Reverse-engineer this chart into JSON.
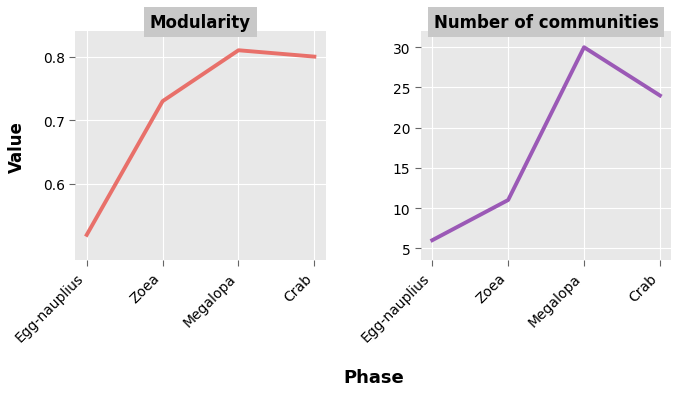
{
  "phases": [
    "Egg-nauplius",
    "Zoea",
    "Megalopa",
    "Crab"
  ],
  "modularity_values": [
    0.52,
    0.73,
    0.81,
    0.8
  ],
  "communities_values": [
    6,
    11,
    30,
    24
  ],
  "left_title": "Modularity",
  "right_title": "Number of communities",
  "xlabel": "Phase",
  "ylabel": "Value",
  "left_ylim": [
    0.48,
    0.84
  ],
  "left_yticks": [
    0.6,
    0.7,
    0.8
  ],
  "right_ylim": [
    3.5,
    32
  ],
  "right_yticks": [
    5,
    10,
    15,
    20,
    25,
    30
  ],
  "line_color_left": "#E8706A",
  "line_color_right": "#9B59B6",
  "bg_color": "#E8E8E8",
  "panel_title_bg": "#C8C8C8",
  "outer_bg": "#EBEBEB",
  "grid_color": "#FFFFFF",
  "line_width": 2.8,
  "tick_label_fontsize": 10,
  "title_fontsize": 12,
  "ylabel_fontsize": 12,
  "xlabel_fontsize": 13
}
